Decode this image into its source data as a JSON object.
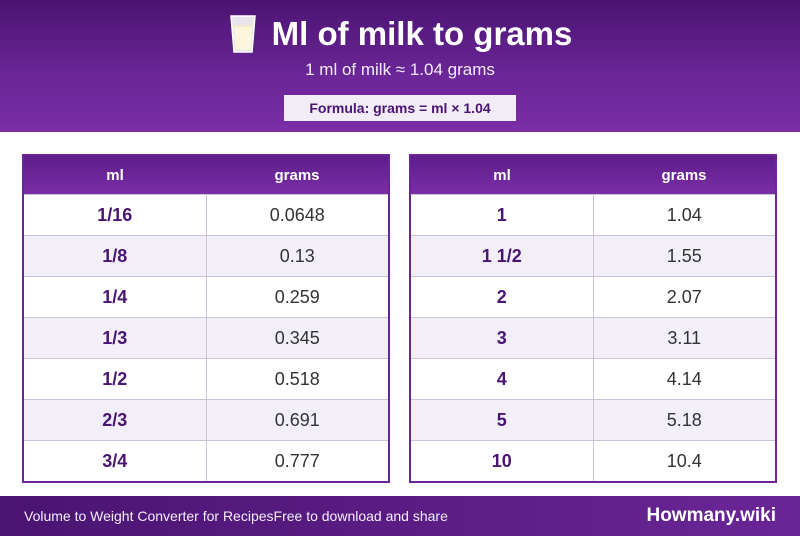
{
  "header": {
    "title": "Ml of milk to grams",
    "subtitle": "1 ml of milk ≈ 1.04 grams",
    "formula": "Formula: grams = ml × 1.04",
    "icon": "milk-glass-icon"
  },
  "tables": {
    "left": {
      "col_ml": "ml",
      "col_grams": "grams",
      "rows": [
        {
          "ml": "1/16",
          "grams": "0.0648"
        },
        {
          "ml": "1/8",
          "grams": "0.13"
        },
        {
          "ml": "1/4",
          "grams": "0.259"
        },
        {
          "ml": "1/3",
          "grams": "0.345"
        },
        {
          "ml": "1/2",
          "grams": "0.518"
        },
        {
          "ml": "2/3",
          "grams": "0.691"
        },
        {
          "ml": "3/4",
          "grams": "0.777"
        }
      ]
    },
    "right": {
      "col_ml": "ml",
      "col_grams": "grams",
      "rows": [
        {
          "ml": "1",
          "grams": "1.04"
        },
        {
          "ml": "1 1/2",
          "grams": "1.55"
        },
        {
          "ml": "2",
          "grams": "2.07"
        },
        {
          "ml": "3",
          "grams": "3.11"
        },
        {
          "ml": "4",
          "grams": "4.14"
        },
        {
          "ml": "5",
          "grams": "5.18"
        },
        {
          "ml": "10",
          "grams": "10.4"
        }
      ]
    }
  },
  "footer": {
    "tagline": "Volume to Weight Converter for Recipes",
    "share": "Free to download and share",
    "brand": "Howmany.wiki"
  },
  "colors": {
    "accent": "#6a2596",
    "accent_dark": "#4a1472",
    "row_alt": "#f3eff9"
  }
}
